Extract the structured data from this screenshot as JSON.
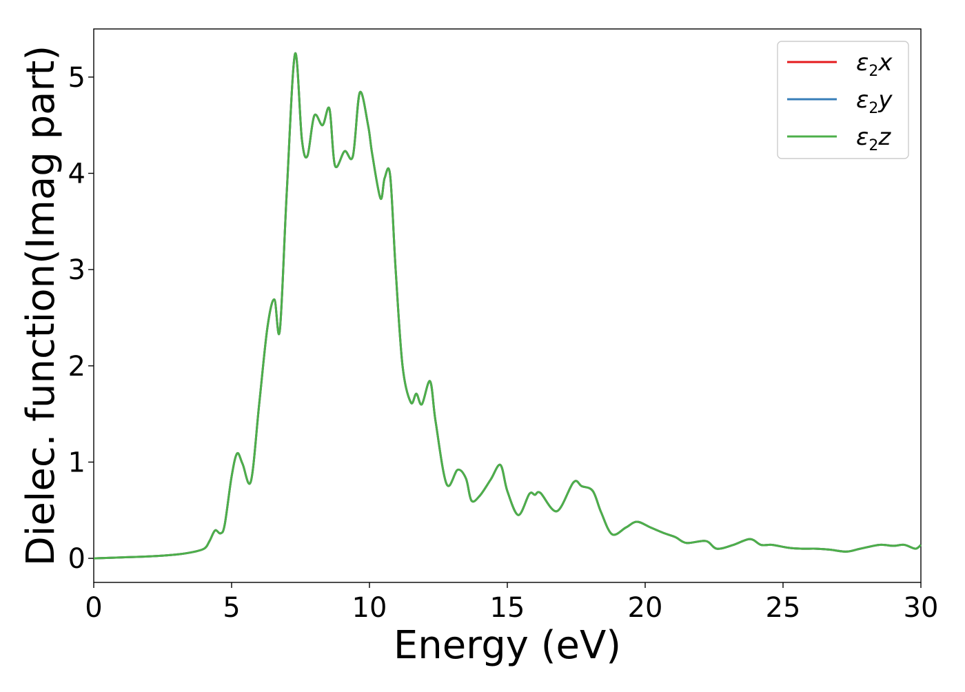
{
  "chart_data": {
    "type": "line",
    "title": "",
    "xlabel": "Energy (eV)",
    "ylabel": "Dielec. function(Imag part)",
    "xlim": [
      0,
      30
    ],
    "ylim": [
      -0.25,
      5.5
    ],
    "xticks": [
      0,
      5,
      10,
      15,
      20,
      25,
      30
    ],
    "yticks": [
      0,
      1,
      2,
      3,
      4,
      5
    ],
    "grid": false,
    "legend_position": "top-right",
    "series": [
      {
        "name": "ε2x",
        "legend_base": "ε",
        "legend_sub": "2",
        "legend_var": "x",
        "color": "#e41a1c"
      },
      {
        "name": "ε2y",
        "legend_base": "ε",
        "legend_sub": "2",
        "legend_var": "y",
        "color": "#377eb8"
      },
      {
        "name": "ε2z",
        "legend_base": "ε",
        "legend_sub": "2",
        "legend_var": "z",
        "color": "#4daf4a"
      }
    ],
    "x": [
      0,
      1,
      2,
      3,
      3.5,
      4.0,
      4.2,
      4.4,
      4.6,
      4.75,
      5.0,
      5.2,
      5.4,
      5.7,
      6.0,
      6.3,
      6.55,
      6.75,
      7.0,
      7.3,
      7.55,
      7.75,
      8.0,
      8.3,
      8.55,
      8.75,
      9.1,
      9.4,
      9.65,
      9.95,
      10.1,
      10.4,
      10.55,
      10.75,
      10.95,
      11.2,
      11.5,
      11.7,
      11.9,
      12.2,
      12.4,
      12.8,
      13.2,
      13.5,
      13.7,
      14.0,
      14.4,
      14.75,
      15.0,
      15.4,
      15.8,
      16.0,
      16.2,
      16.8,
      17.4,
      17.7,
      18.1,
      18.4,
      18.8,
      19.3,
      19.7,
      20.2,
      20.7,
      21.1,
      21.5,
      22.2,
      22.6,
      23.2,
      23.8,
      24.2,
      24.6,
      25.2,
      25.7,
      26.2,
      26.7,
      27.3,
      27.8,
      28.5,
      29.0,
      29.4,
      29.8,
      30.0
    ],
    "y": [
      0.0,
      0.01,
      0.02,
      0.04,
      0.06,
      0.1,
      0.18,
      0.29,
      0.26,
      0.35,
      0.85,
      1.09,
      0.98,
      0.8,
      1.6,
      2.4,
      2.69,
      2.37,
      3.8,
      5.24,
      4.35,
      4.18,
      4.6,
      4.5,
      4.67,
      4.08,
      4.23,
      4.18,
      4.84,
      4.5,
      4.2,
      3.74,
      3.95,
      3.98,
      3.0,
      2.0,
      1.62,
      1.71,
      1.6,
      1.84,
      1.42,
      0.77,
      0.92,
      0.83,
      0.6,
      0.65,
      0.82,
      0.97,
      0.7,
      0.45,
      0.67,
      0.66,
      0.68,
      0.49,
      0.79,
      0.75,
      0.7,
      0.48,
      0.25,
      0.32,
      0.38,
      0.32,
      0.26,
      0.22,
      0.16,
      0.18,
      0.1,
      0.14,
      0.2,
      0.14,
      0.14,
      0.11,
      0.1,
      0.1,
      0.09,
      0.07,
      0.1,
      0.14,
      0.13,
      0.14,
      0.1,
      0.14
    ]
  }
}
